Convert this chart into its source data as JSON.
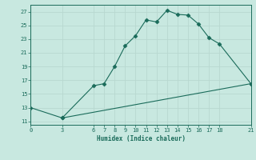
{
  "xlabel": "Humidex (Indice chaleur)",
  "bg_color": "#c8e8e0",
  "line_color": "#1a6b5a",
  "grid_color": "#b8d8d0",
  "upper_curve": {
    "x": [
      0,
      3,
      6,
      7,
      8,
      9,
      10,
      11,
      12,
      13,
      14,
      15,
      16,
      17,
      18,
      21
    ],
    "y": [
      13,
      11.5,
      16.2,
      16.5,
      19.0,
      22.0,
      23.5,
      25.8,
      25.5,
      27.2,
      26.6,
      26.5,
      25.2,
      23.2,
      22.3,
      16.5
    ]
  },
  "lower_line": {
    "x": [
      3,
      21
    ],
    "y": [
      11.5,
      16.5
    ]
  },
  "xlim": [
    0,
    21
  ],
  "ylim": [
    11,
    27
  ],
  "xticks": [
    0,
    3,
    6,
    7,
    8,
    9,
    10,
    11,
    12,
    13,
    14,
    15,
    16,
    17,
    18,
    21
  ],
  "yticks": [
    11,
    13,
    15,
    17,
    19,
    21,
    23,
    25,
    27
  ],
  "markersize": 2.5
}
